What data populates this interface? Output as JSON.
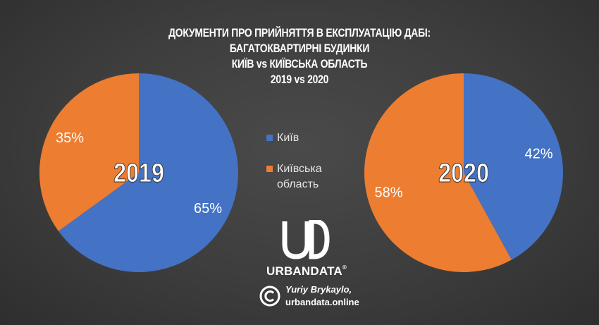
{
  "title_lines": [
    "ДОКУМЕНТИ ПРО ПРИЙНЯТТЯ В ЕКСПЛУАТАЦІЮ ДАБІ:",
    "БАГАТОКВАРТИРНІ БУДИНКИ",
    "КИЇВ vs КИЇВСЬКА ОБЛАСТЬ",
    "2019 vs 2020"
  ],
  "colors": {
    "kyiv": "#4472c4",
    "region": "#ed7d31"
  },
  "legend": [
    {
      "label": "Київ",
      "color": "#4472c4"
    },
    {
      "label": "Київська область",
      "color": "#ed7d31"
    }
  ],
  "chart_data": [
    {
      "type": "pie",
      "center_label": "2019",
      "slices": [
        {
          "name": "Київ",
          "value": 65,
          "label": "65%",
          "color": "#4472c4"
        },
        {
          "name": "Київська область",
          "value": 35,
          "label": "35%",
          "color": "#ed7d31"
        }
      ]
    },
    {
      "type": "pie",
      "center_label": "2020",
      "slices": [
        {
          "name": "Київ",
          "value": 42,
          "label": "42%",
          "color": "#4472c4"
        },
        {
          "name": "Київська область",
          "value": 58,
          "label": "58%",
          "color": "#ed7d31"
        }
      ]
    }
  ],
  "logo": {
    "text": "URBANDATA",
    "mark": "®"
  },
  "credit": {
    "author": "Yuriy Brykaylo,",
    "site": "urbandata.online"
  }
}
